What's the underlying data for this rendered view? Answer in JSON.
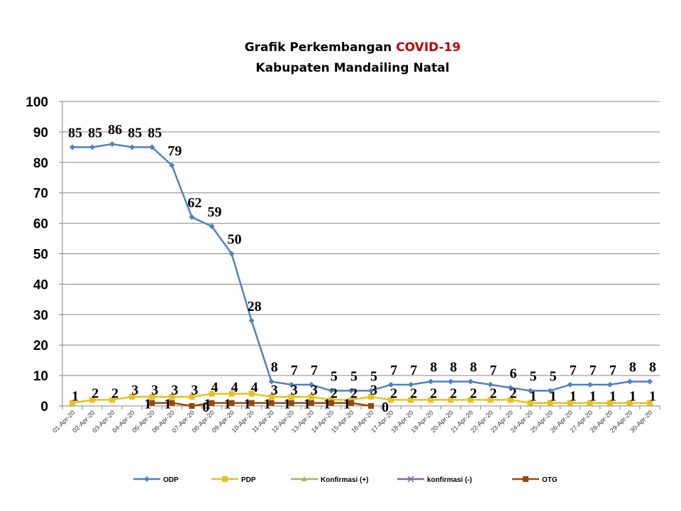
{
  "chart_data": {
    "type": "line",
    "title": "Grafik Perkembangan COVID-19",
    "title_parts": [
      {
        "text": "Grafik Perkembangan ",
        "color": "#000000"
      },
      {
        "text": "COVID-19",
        "color": "#C00000"
      }
    ],
    "subtitle": "Kabupaten Mandailing Natal",
    "xlabel": "",
    "ylabel": "",
    "ylim": [
      0,
      100
    ],
    "yticks": [
      0,
      10,
      20,
      30,
      40,
      50,
      60,
      70,
      80,
      90,
      100
    ],
    "grid": true,
    "legend_position": "bottom",
    "categories": [
      "01-Apr-20",
      "02-Apr-20",
      "03-Apr-20",
      "04-Apr-20",
      "05-Apr-20",
      "06-Apr-20",
      "07-Apr-20",
      "08-Apr-20",
      "09-Apr-20",
      "10-Apr-20",
      "11-Apr-20",
      "12-Apr-20",
      "13-Apr-20",
      "14-Apr-20",
      "15-Apr-20",
      "16-Apr-20",
      "17-Apr-20",
      "18-Apr-20",
      "19-Apr-20",
      "20-Apr-20",
      "21-Apr-20",
      "22-Apr-20",
      "23-Apr-20",
      "24-Apr-20",
      "25-Apr-20",
      "26-Apr-20",
      "27-Apr-20",
      "28-Apr-20",
      "29-Apr-20",
      "30-Apr-20"
    ],
    "series": [
      {
        "name": "ODP",
        "color": "#4F81BD",
        "marker": "diamond",
        "show_labels": true,
        "values": [
          85,
          85,
          86,
          85,
          85,
          79,
          62,
          59,
          50,
          28,
          8,
          7,
          7,
          5,
          5,
          5,
          7,
          7,
          8,
          8,
          8,
          7,
          6,
          5,
          5,
          7,
          7,
          7,
          8,
          8
        ]
      },
      {
        "name": "PDP",
        "color": "#E6C21A",
        "marker": "square",
        "show_labels": true,
        "values": [
          1,
          2,
          2,
          3,
          3,
          3,
          3,
          4,
          4,
          4,
          3,
          3,
          3,
          2,
          2,
          3,
          2,
          2,
          2,
          2,
          2,
          2,
          2,
          1,
          1,
          1,
          1,
          1,
          1,
          1
        ]
      },
      {
        "name": "Konfirmasi (+)",
        "color": "#9BBB59",
        "marker": "triangle",
        "show_labels": false,
        "values": [
          null,
          null,
          null,
          null,
          null,
          null,
          null,
          null,
          null,
          null,
          null,
          null,
          null,
          null,
          null,
          null,
          null,
          null,
          null,
          null,
          null,
          null,
          null,
          null,
          null,
          null,
          null,
          null,
          null,
          null
        ]
      },
      {
        "name": "konfirmasi (-)",
        "color": "#8064A2",
        "marker": "x",
        "show_labels": false,
        "values": [
          null,
          null,
          null,
          null,
          null,
          null,
          null,
          null,
          null,
          null,
          null,
          null,
          null,
          null,
          null,
          null,
          null,
          null,
          null,
          null,
          null,
          null,
          null,
          null,
          null,
          null,
          null,
          null,
          null,
          null
        ]
      },
      {
        "name": "OTG",
        "color": "#984807",
        "marker": "square",
        "show_labels": true,
        "values": [
          null,
          null,
          null,
          null,
          1,
          1,
          0,
          1,
          1,
          1,
          1,
          1,
          1,
          1,
          1,
          0,
          null,
          null,
          null,
          null,
          null,
          null,
          null,
          null,
          null,
          null,
          null,
          null,
          null,
          null
        ]
      }
    ]
  }
}
